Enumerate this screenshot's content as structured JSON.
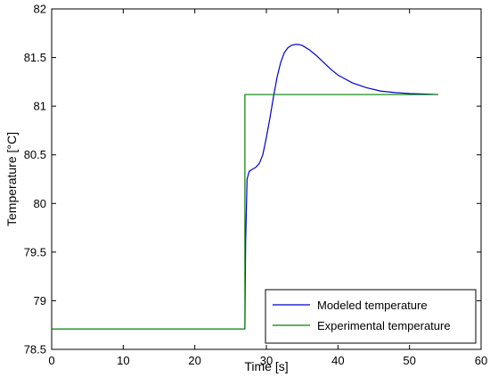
{
  "chart_data": {
    "type": "line",
    "xlabel": "Time [s]",
    "ylabel": "Temperature [°C]",
    "xlim": [
      0,
      60
    ],
    "ylim": [
      78.5,
      82
    ],
    "xticks": [
      0,
      10,
      20,
      30,
      40,
      50,
      60
    ],
    "yticks": [
      78.5,
      79,
      79.5,
      80,
      80.5,
      81,
      81.5,
      82
    ],
    "xtick_labels": [
      "0",
      "10",
      "20",
      "30",
      "40",
      "50",
      "60"
    ],
    "ytick_labels": [
      "78.5",
      "79",
      "79.5",
      "80",
      "80.5",
      "81",
      "81.5",
      "82"
    ],
    "grid": false,
    "legend_position": "bottom-right",
    "series": [
      {
        "name": "Modeled temperature",
        "color": "#0000cc",
        "x": [
          0,
          10,
          20,
          27,
          27.1,
          27.3,
          27.6,
          28,
          28.5,
          29,
          29.5,
          30,
          30.5,
          31,
          31.5,
          32,
          32.5,
          33,
          33.5,
          34,
          34.5,
          35,
          36,
          37,
          38,
          39,
          40,
          42,
          44,
          46,
          48,
          50,
          52,
          54
        ],
        "y": [
          78.71,
          78.71,
          78.71,
          78.71,
          79.6,
          80.25,
          80.33,
          80.35,
          80.37,
          80.41,
          80.5,
          80.68,
          80.88,
          81.1,
          81.3,
          81.45,
          81.55,
          81.6,
          81.625,
          81.635,
          81.635,
          81.625,
          81.58,
          81.52,
          81.45,
          81.38,
          81.32,
          81.24,
          81.19,
          81.155,
          81.14,
          81.13,
          81.125,
          81.12
        ]
      },
      {
        "name": "Experimental temperature",
        "color": "#008000",
        "x": [
          0,
          27,
          27,
          54
        ],
        "y": [
          78.71,
          78.71,
          81.12,
          81.12
        ]
      }
    ]
  }
}
